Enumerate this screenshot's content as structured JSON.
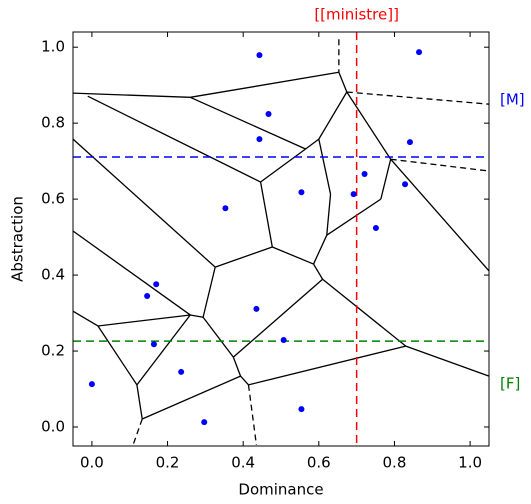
{
  "chart_data": {
    "type": "scatter",
    "x_label": "Dominance",
    "y_label": "Abstraction",
    "color": "#0000ff",
    "x": [
      0.443,
      0.865,
      0.467,
      0.841,
      0.443,
      0.554,
      0.721,
      0.828,
      0.692,
      0.751,
      0.353,
      0.17,
      0.146,
      0.435,
      0.507,
      0.164,
      0.236,
      0.0,
      0.297,
      0.554
    ],
    "y": [
      0.979,
      0.987,
      0.824,
      0.75,
      0.758,
      0.618,
      0.666,
      0.639,
      0.613,
      0.524,
      0.576,
      0.376,
      0.345,
      0.311,
      0.229,
      0.218,
      0.145,
      0.113,
      0.013,
      0.047
    ],
    "xlim": [
      -0.05,
      1.05
    ],
    "ylim": [
      -0.05,
      1.04
    ],
    "xticks": [
      {
        "value": 0,
        "label": "0.0"
      },
      0.2,
      0.4,
      0.6,
      0.8,
      {
        "value": 1,
        "label": "1.0"
      }
    ],
    "yticks": [
      {
        "value": 0,
        "label": "0.0"
      },
      0.2,
      0.4,
      0.6,
      0.8,
      {
        "value": 1,
        "label": "1.0"
      }
    ],
    "edges": [
      {
        "x": [
          -0.05,
          0.26
        ],
        "y": [
          0.879,
          0.868
        ],
        "dashed": false
      },
      {
        "x": [
          0.26,
          0.653
        ],
        "y": [
          0.868,
          0.934
        ],
        "dashed": false
      },
      {
        "x": [
          0.653,
          0.674
        ],
        "y": [
          0.934,
          0.882
        ],
        "dashed": false
      },
      {
        "x": [
          0.674,
          0.6
        ],
        "y": [
          0.882,
          0.758
        ],
        "dashed": false
      },
      {
        "x": [
          0.26,
          0.565
        ],
        "y": [
          0.868,
          0.732
        ],
        "dashed": false
      },
      {
        "x": [
          0.6,
          0.565
        ],
        "y": [
          0.758,
          0.732
        ],
        "dashed": false
      },
      {
        "x": [
          0.565,
          0.446
        ],
        "y": [
          0.732,
          0.645
        ],
        "dashed": false
      },
      {
        "x": [
          -0.011,
          0.446
        ],
        "y": [
          0.871,
          0.645
        ],
        "dashed": false
      },
      {
        "x": [
          0.674,
          0.79
        ],
        "y": [
          0.882,
          0.705
        ],
        "dashed": false
      },
      {
        "x": [
          0.79,
          1.05
        ],
        "y": [
          0.705,
          0.411
        ],
        "dashed": false
      },
      {
        "x": [
          0.79,
          0.764
        ],
        "y": [
          0.705,
          0.6
        ],
        "dashed": false
      },
      {
        "x": [
          0.6,
          0.631
        ],
        "y": [
          0.758,
          0.613
        ],
        "dashed": false
      },
      {
        "x": [
          0.631,
          0.621
        ],
        "y": [
          0.613,
          0.505
        ],
        "dashed": false
      },
      {
        "x": [
          0.764,
          0.621
        ],
        "y": [
          0.6,
          0.505
        ],
        "dashed": false
      },
      {
        "x": [
          0.621,
          0.586
        ],
        "y": [
          0.505,
          0.429
        ],
        "dashed": false
      },
      {
        "x": [
          0.446,
          0.477
        ],
        "y": [
          0.645,
          0.474
        ],
        "dashed": false
      },
      {
        "x": [
          0.477,
          0.586
        ],
        "y": [
          0.474,
          0.429
        ],
        "dashed": false
      },
      {
        "x": [
          0.477,
          0.326
        ],
        "y": [
          0.474,
          0.421
        ],
        "dashed": false
      },
      {
        "x": [
          -0.05,
          0.326
        ],
        "y": [
          0.758,
          0.421
        ],
        "dashed": false
      },
      {
        "x": [
          -0.05,
          0.26
        ],
        "y": [
          0.516,
          0.295
        ],
        "dashed": false
      },
      {
        "x": [
          0.326,
          0.294
        ],
        "y": [
          0.421,
          0.289
        ],
        "dashed": false
      },
      {
        "x": [
          0.586,
          0.61
        ],
        "y": [
          0.429,
          0.389
        ],
        "dashed": false
      },
      {
        "x": [
          0.61,
          0.374
        ],
        "y": [
          0.389,
          0.184
        ],
        "dashed": false
      },
      {
        "x": [
          0.61,
          0.83
        ],
        "y": [
          0.389,
          0.213
        ],
        "dashed": false
      },
      {
        "x": [
          0.83,
          1.05
        ],
        "y": [
          0.213,
          0.134
        ],
        "dashed": false
      },
      {
        "x": [
          0.294,
          0.374
        ],
        "y": [
          0.289,
          0.184
        ],
        "dashed": false
      },
      {
        "x": [
          0.26,
          0.016
        ],
        "y": [
          0.295,
          0.266
        ],
        "dashed": false
      },
      {
        "x": [
          0.016,
          -0.05
        ],
        "y": [
          0.266,
          0.305
        ],
        "dashed": false
      },
      {
        "x": [
          0.016,
          0.119
        ],
        "y": [
          0.266,
          0.111
        ],
        "dashed": false
      },
      {
        "x": [
          0.26,
          0.119
        ],
        "y": [
          0.295,
          0.111
        ],
        "dashed": false
      },
      {
        "x": [
          0.294,
          0.26
        ],
        "y": [
          0.289,
          0.295
        ],
        "dashed": false
      },
      {
        "x": [
          0.374,
          0.393
        ],
        "y": [
          0.184,
          0.134
        ],
        "dashed": false
      },
      {
        "x": [
          0.393,
          0.414
        ],
        "y": [
          0.134,
          0.111
        ],
        "dashed": false
      },
      {
        "x": [
          0.414,
          0.83
        ],
        "y": [
          0.111,
          0.213
        ],
        "dashed": false
      },
      {
        "x": [
          0.119,
          0.133
        ],
        "y": [
          0.111,
          0.021
        ],
        "dashed": false
      },
      {
        "x": [
          0.133,
          0.393
        ],
        "y": [
          0.021,
          0.134
        ],
        "dashed": false
      },
      {
        "x": [
          0.653,
          0.653
        ],
        "y": [
          1.021,
          0.934
        ],
        "dashed": true
      },
      {
        "x": [
          0.674,
          1.05
        ],
        "y": [
          0.882,
          0.85
        ],
        "dashed": true
      },
      {
        "x": [
          0.79,
          1.05
        ],
        "y": [
          0.705,
          0.674
        ],
        "dashed": true
      },
      {
        "x": [
          0.414,
          0.435
        ],
        "y": [
          0.111,
          -0.047
        ],
        "dashed": true
      },
      {
        "x": [
          0.133,
          0.109
        ],
        "y": [
          0.021,
          -0.047
        ],
        "dashed": true
      }
    ],
    "reference_lines": [
      {
        "axis": "x",
        "value": 0.7,
        "label": "[[ministre]]",
        "color": "#ff0000"
      },
      {
        "axis": "y",
        "value": 0.711,
        "label": "[M]",
        "color": "#0000ff"
      },
      {
        "axis": "y",
        "value": 0.226,
        "label": "[F]",
        "color": "#008000"
      }
    ]
  }
}
